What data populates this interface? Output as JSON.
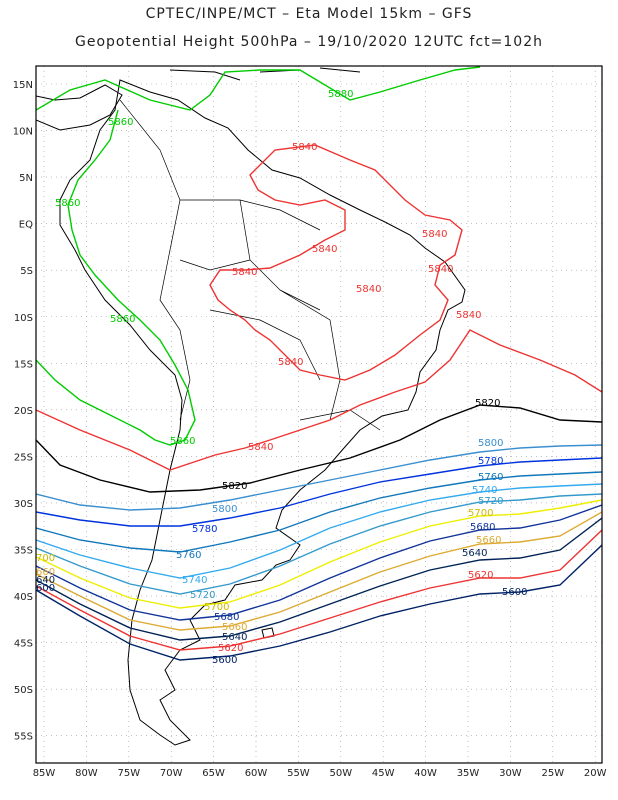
{
  "header": {
    "line1": "CPTEC/INPE/MCT –  Eta Model 15km – GFS",
    "line2": "Geopotential Height 500hPa – 19/10/2020 12UTC fct=102h"
  },
  "map": {
    "lat_labels": [
      "15N",
      "10N",
      "5N",
      "EQ",
      "5S",
      "10S",
      "15S",
      "20S",
      "25S",
      "30S",
      "35S",
      "40S",
      "45S",
      "50S",
      "55S"
    ],
    "lon_labels": [
      "85W",
      "80W",
      "75W",
      "70W",
      "65W",
      "60W",
      "55W",
      "50W",
      "45W",
      "40W",
      "35W",
      "30W",
      "25W",
      "20W"
    ]
  },
  "contours": [
    {
      "value": "5880",
      "color": "#00cc00"
    },
    {
      "value": "5860",
      "color": "#00cc00"
    },
    {
      "value": "5840",
      "color": "#ee3333"
    },
    {
      "value": "5820",
      "color": "#000000"
    },
    {
      "value": "5800",
      "color": "#3a8fd0"
    },
    {
      "value": "5780",
      "color": "#0033dd"
    },
    {
      "value": "5760",
      "color": "#1177bb"
    },
    {
      "value": "5740",
      "color": "#33aaee"
    },
    {
      "value": "5720",
      "color": "#3399cc"
    },
    {
      "value": "5700",
      "color": "#eeee00"
    },
    {
      "value": "5680",
      "color": "#113399"
    },
    {
      "value": "5660",
      "color": "#ddaa33"
    },
    {
      "value": "5640",
      "color": "#002255"
    },
    {
      "value": "5620",
      "color": "#ee3333"
    },
    {
      "value": "5600",
      "color": "#002266"
    }
  ],
  "labels": [
    {
      "text": "5880",
      "color": "#00cc00"
    },
    {
      "text": "5860",
      "color": "#00cc00"
    },
    {
      "text": "5860",
      "color": "#00cc00"
    },
    {
      "text": "5860",
      "color": "#00cc00"
    },
    {
      "text": "5860",
      "color": "#00cc00"
    },
    {
      "text": "5840",
      "color": "#ee3333"
    },
    {
      "text": "5840",
      "color": "#ee3333"
    },
    {
      "text": "5840",
      "color": "#ee3333"
    },
    {
      "text": "5840",
      "color": "#ee3333"
    },
    {
      "text": "5840",
      "color": "#ee3333"
    },
    {
      "text": "5840",
      "color": "#ee3333"
    },
    {
      "text": "5840",
      "color": "#ee3333"
    },
    {
      "text": "5840",
      "color": "#ee3333"
    },
    {
      "text": "5840",
      "color": "#ee3333"
    },
    {
      "text": "5820",
      "color": "#000000"
    },
    {
      "text": "5820",
      "color": "#000000"
    },
    {
      "text": "5800",
      "color": "#3a8fd0"
    },
    {
      "text": "5800",
      "color": "#3a8fd0"
    },
    {
      "text": "5780",
      "color": "#0033dd"
    },
    {
      "text": "5780",
      "color": "#0033dd"
    },
    {
      "text": "5760",
      "color": "#1177bb"
    },
    {
      "text": "5760",
      "color": "#1177bb"
    },
    {
      "text": "5740",
      "color": "#33aaee"
    },
    {
      "text": "5740",
      "color": "#33aaee"
    },
    {
      "text": "5720",
      "color": "#3399cc"
    },
    {
      "text": "5720",
      "color": "#3399cc"
    },
    {
      "text": "5700",
      "color": "#ccbb00"
    },
    {
      "text": "5700",
      "color": "#ccbb00"
    },
    {
      "text": "5680",
      "color": "#113399"
    },
    {
      "text": "5680",
      "color": "#113399"
    },
    {
      "text": "5660",
      "color": "#ddaa33"
    },
    {
      "text": "5660",
      "color": "#ddaa33"
    },
    {
      "text": "5640",
      "color": "#002255"
    },
    {
      "text": "5640",
      "color": "#002255"
    },
    {
      "text": "5620",
      "color": "#ee3333"
    },
    {
      "text": "5620",
      "color": "#ee3333"
    },
    {
      "text": "5600",
      "color": "#002266"
    },
    {
      "text": "5600",
      "color": "#002266"
    },
    {
      "text": "700",
      "color": "#ccbb00"
    },
    {
      "text": "660",
      "color": "#ddaa33"
    },
    {
      "text": "640",
      "color": "#002255"
    },
    {
      "text": "600",
      "color": "#002266"
    }
  ]
}
